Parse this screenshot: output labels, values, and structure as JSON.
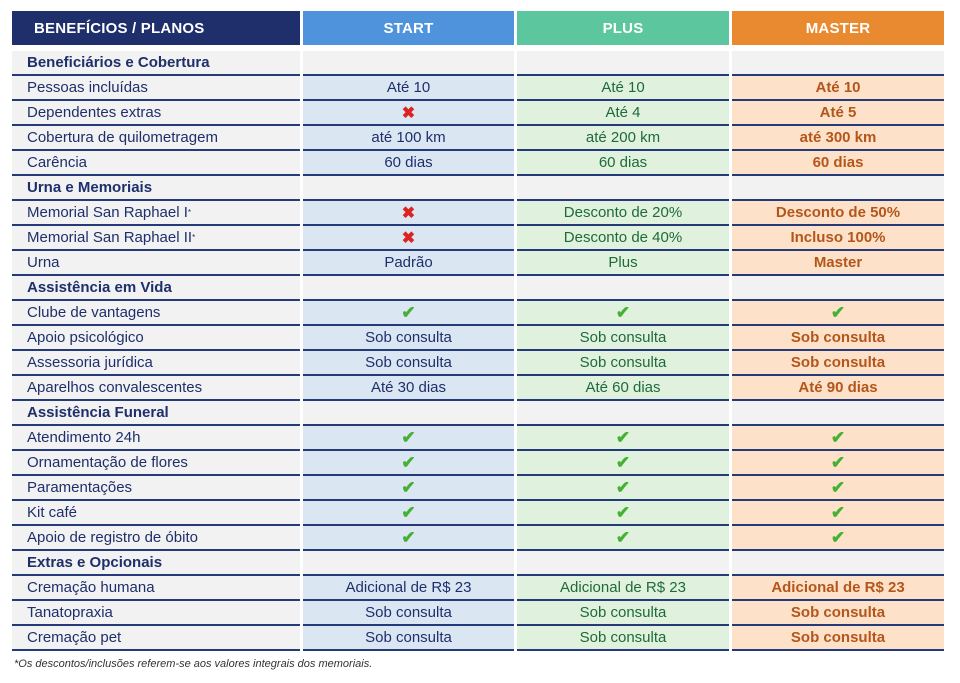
{
  "header": {
    "col0": "BENEFÍCIOS / PLANOS",
    "col1": "START",
    "col2": "PLUS",
    "col3": "MASTER"
  },
  "rows": [
    {
      "type": "section",
      "label": "Beneficiários e Cobertura"
    },
    {
      "type": "row",
      "label": "Pessoas incluídas",
      "start": "Até 10",
      "plus": "Até 10",
      "master": "Até 10"
    },
    {
      "type": "row",
      "label": "Dependentes extras",
      "start": "cross-icon",
      "plus": "Até 4",
      "master": "Até 5"
    },
    {
      "type": "row",
      "label": "Cobertura de quilometragem",
      "start": "até 100 km",
      "plus": "até 200 km",
      "master": "até 300 km"
    },
    {
      "type": "row",
      "label": "Carência",
      "start": "60 dias",
      "plus": "60 dias",
      "master": "60 dias"
    },
    {
      "type": "section",
      "label": "Urna e Memoriais"
    },
    {
      "type": "row",
      "label": "Memorial San Raphael I",
      "sup": "*",
      "start": "cross-icon",
      "plus": "Desconto de 20%",
      "master": "Desconto de 50%"
    },
    {
      "type": "row",
      "label": "Memorial San Raphael II",
      "sup": "*",
      "start": "cross-icon",
      "plus": "Desconto de 40%",
      "master": "Incluso 100%"
    },
    {
      "type": "row",
      "label": "Urna",
      "start": "Padrão",
      "plus": "Plus",
      "master": "Master"
    },
    {
      "type": "section",
      "label": "Assistência em Vida"
    },
    {
      "type": "row",
      "label": "Clube de vantagens",
      "start": "check-icon",
      "plus": "check-icon",
      "master": "check-icon"
    },
    {
      "type": "row",
      "label": "Apoio psicológico",
      "start": "Sob consulta",
      "plus": "Sob consulta",
      "master": "Sob consulta"
    },
    {
      "type": "row",
      "label": "Assessoria jurídica",
      "start": "Sob consulta",
      "plus": "Sob consulta",
      "master": "Sob consulta"
    },
    {
      "type": "row",
      "label": "Aparelhos convalescentes",
      "start": "Até 30 dias",
      "plus": "Até 60 dias",
      "master": "Até 90 dias"
    },
    {
      "type": "section",
      "label": "Assistência Funeral"
    },
    {
      "type": "row",
      "label": "Atendimento 24h",
      "start": "check-icon",
      "plus": "check-icon",
      "master": "check-icon"
    },
    {
      "type": "row",
      "label": "Ornamentação de flores",
      "start": "check-icon",
      "plus": "check-icon",
      "master": "check-icon"
    },
    {
      "type": "row",
      "label": "Paramentações",
      "start": "check-icon",
      "plus": "check-icon",
      "master": "check-icon"
    },
    {
      "type": "row",
      "label": "Kit café",
      "start": "check-icon",
      "plus": "check-icon",
      "master": "check-icon"
    },
    {
      "type": "row",
      "label": "Apoio de registro de óbito",
      "start": "check-icon",
      "plus": "check-icon",
      "master": "check-icon"
    },
    {
      "type": "section",
      "label": "Extras e Opcionais"
    },
    {
      "type": "row",
      "label": "Cremação humana",
      "start": "Adicional de R$ 23",
      "plus": "Adicional de R$ 23",
      "master": "Adicional de R$ 23"
    },
    {
      "type": "row",
      "label": "Tanatopraxia",
      "start": "Sob consulta",
      "plus": "Sob consulta",
      "master": "Sob consulta"
    },
    {
      "type": "row",
      "label": "Cremação pet",
      "start": "Sob consulta",
      "plus": "Sob consulta",
      "master": "Sob consulta"
    }
  ],
  "footnote": "*Os descontos/inclusões referem-se aos valores integrais dos memoriais.",
  "colors": {
    "navy": "#1e2f6b",
    "start": "#4f93dc",
    "plus": "#5cc79e",
    "master": "#ea8a30",
    "check": "#45b133",
    "cross": "#dd2320"
  }
}
